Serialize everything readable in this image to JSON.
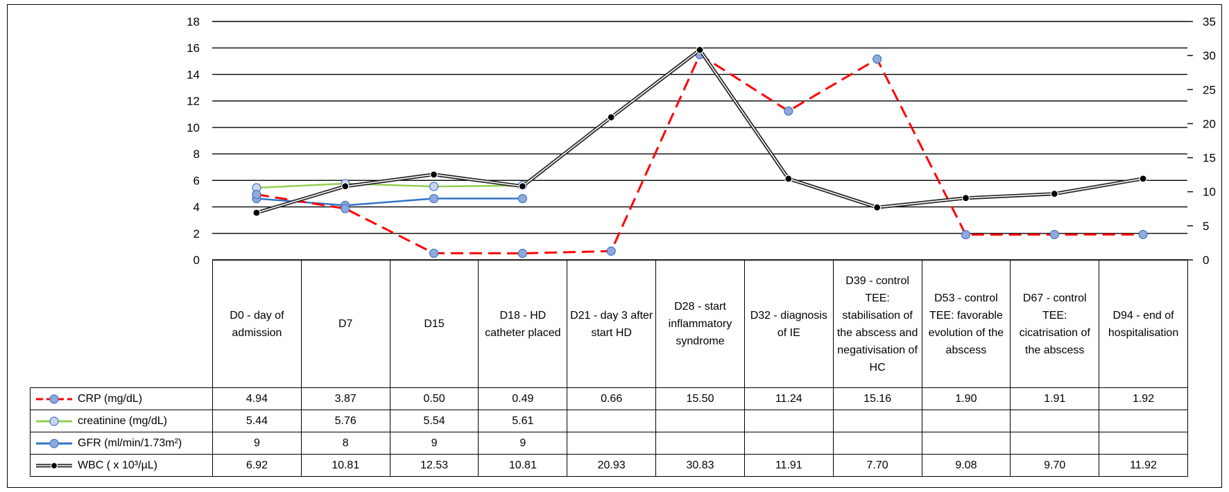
{
  "chart_data": {
    "type": "line",
    "title": "",
    "xlabel": "",
    "ylabel": "",
    "categories": [
      "D0 - day of admission",
      "D7",
      "D15",
      "D18 - HD catheter placed",
      "D21 - day 3 after start HD",
      "D28 - start inflammatory syndrome",
      "D32 - diagnosis of IE",
      "D39 - control TEE: stabilisation of the abscess and negativisation of HC",
      "D53 - control TEE: favorable evolution of the abscess",
      "D67 - control TEE: cicatrisation of the abscess",
      "D94 - end of hospitalisation"
    ],
    "ylim": [
      0,
      18
    ],
    "y_ticks": [
      "0",
      "2",
      "4",
      "6",
      "8",
      "10",
      "12",
      "14",
      "16",
      "18"
    ],
    "y2lim": [
      0,
      35
    ],
    "y2_ticks": [
      "0",
      "5",
      "10",
      "15",
      "20",
      "25",
      "30",
      "35"
    ],
    "grid": true,
    "legend": "table-bottom-left",
    "series": [
      {
        "name": "CRP (mg/dL)",
        "axis": "left",
        "color": "#ff0000",
        "marker_color": "#8ea9db",
        "dashed": true,
        "values": [
          4.94,
          3.87,
          0.5,
          0.49,
          0.66,
          15.5,
          11.24,
          15.16,
          1.9,
          1.91,
          1.92
        ],
        "labels": [
          "4.94",
          "3.87",
          "0.50",
          "0.49",
          "0.66",
          "15.50",
          "11.24",
          "15.16",
          "1.90",
          "1.91",
          "1.92"
        ]
      },
      {
        "name": "creatinine (mg/dL)",
        "axis": "left",
        "color": "#92d050",
        "marker_color": "#c9d6ee",
        "dashed": false,
        "values": [
          5.44,
          5.76,
          5.54,
          5.61,
          null,
          null,
          null,
          null,
          null,
          null,
          null
        ],
        "labels": [
          "5.44",
          "5.76",
          "5.54",
          "5.61",
          "",
          "",
          "",
          "",
          "",
          "",
          ""
        ]
      },
      {
        "name": "GFR (ml/min/1.73m²)",
        "axis": "right",
        "color": "#2f75c6",
        "marker_color": "#8ea9db",
        "dashed": false,
        "values": [
          9,
          8,
          9,
          9,
          null,
          null,
          null,
          null,
          null,
          null,
          null
        ],
        "labels": [
          "9",
          "8",
          "9",
          "9",
          "",
          "",
          "",
          "",
          "",
          "",
          ""
        ]
      },
      {
        "name": "WBC ( x 10³/µL)",
        "axis": "right",
        "color": "#404040",
        "marker_color": "#000000",
        "dashed": false,
        "double_line": true,
        "values": [
          6.92,
          10.81,
          12.53,
          10.81,
          20.93,
          30.83,
          11.91,
          7.7,
          9.08,
          9.7,
          11.92
        ],
        "labels": [
          "6.92",
          "10.81",
          "12.53",
          "10.81",
          "20.93",
          "30.83",
          "11.91",
          "7.70",
          "9.08",
          "9.70",
          "11.92"
        ]
      }
    ]
  }
}
